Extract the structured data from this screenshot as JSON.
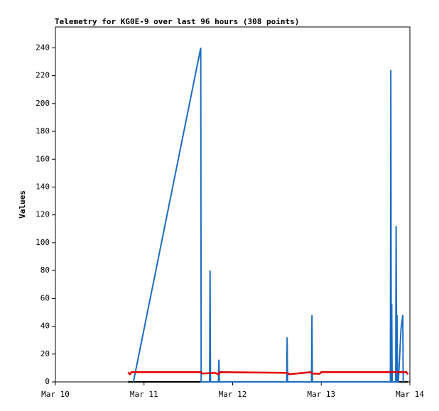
{
  "chart_data": {
    "type": "line",
    "title": "Telemetry for KG0E-9 over last 96 hours (308 points)",
    "y_label": "Values",
    "xlim": [
      10,
      14
    ],
    "xticks": [
      {
        "value": 10,
        "label": "Mar 10"
      },
      {
        "value": 11,
        "label": "Mar 11"
      },
      {
        "value": 12,
        "label": "Mar 12"
      },
      {
        "value": 13,
        "label": "Mar 13"
      },
      {
        "value": 14,
        "label": "Mar 14"
      }
    ],
    "ylim": [
      0,
      255
    ],
    "yticks": [
      0,
      20,
      40,
      60,
      80,
      100,
      120,
      140,
      160,
      180,
      200,
      220,
      240
    ],
    "series": [
      {
        "color": "#000000",
        "x": [
          10.82,
          13.98
        ],
        "values": [
          0,
          0
        ]
      },
      {
        "color": "#1c6cc4",
        "x": [
          10.88,
          11.64,
          11.645,
          11.74,
          11.745,
          11.75,
          11.84,
          11.845,
          11.85,
          12.61,
          12.615,
          12.62,
          12.89,
          12.895,
          12.9,
          13.78,
          13.785,
          13.79,
          13.795,
          13.8,
          13.84,
          13.845,
          13.85,
          13.855,
          13.86,
          13.87,
          13.9,
          13.92,
          13.925
        ],
        "values": [
          0,
          240,
          0,
          0,
          80,
          0,
          0,
          16,
          0,
          0,
          32,
          0,
          0,
          48,
          0,
          0,
          224,
          0,
          56,
          0,
          0,
          112,
          0,
          48,
          0,
          0,
          38,
          48,
          0
        ]
      },
      {
        "color": "#e00000",
        "x": [
          10.82,
          10.84,
          10.86,
          11.64,
          11.66,
          11.8,
          11.84,
          11.86,
          12.62,
          12.64,
          12.8,
          12.88,
          12.9,
          12.98,
          13.0,
          13.96,
          13.98
        ],
        "values": [
          7,
          5.5,
          7,
          7,
          6,
          6.5,
          5.5,
          7,
          6.5,
          5.5,
          6.5,
          7,
          6,
          5.8,
          7,
          7,
          5.5
        ]
      }
    ]
  }
}
